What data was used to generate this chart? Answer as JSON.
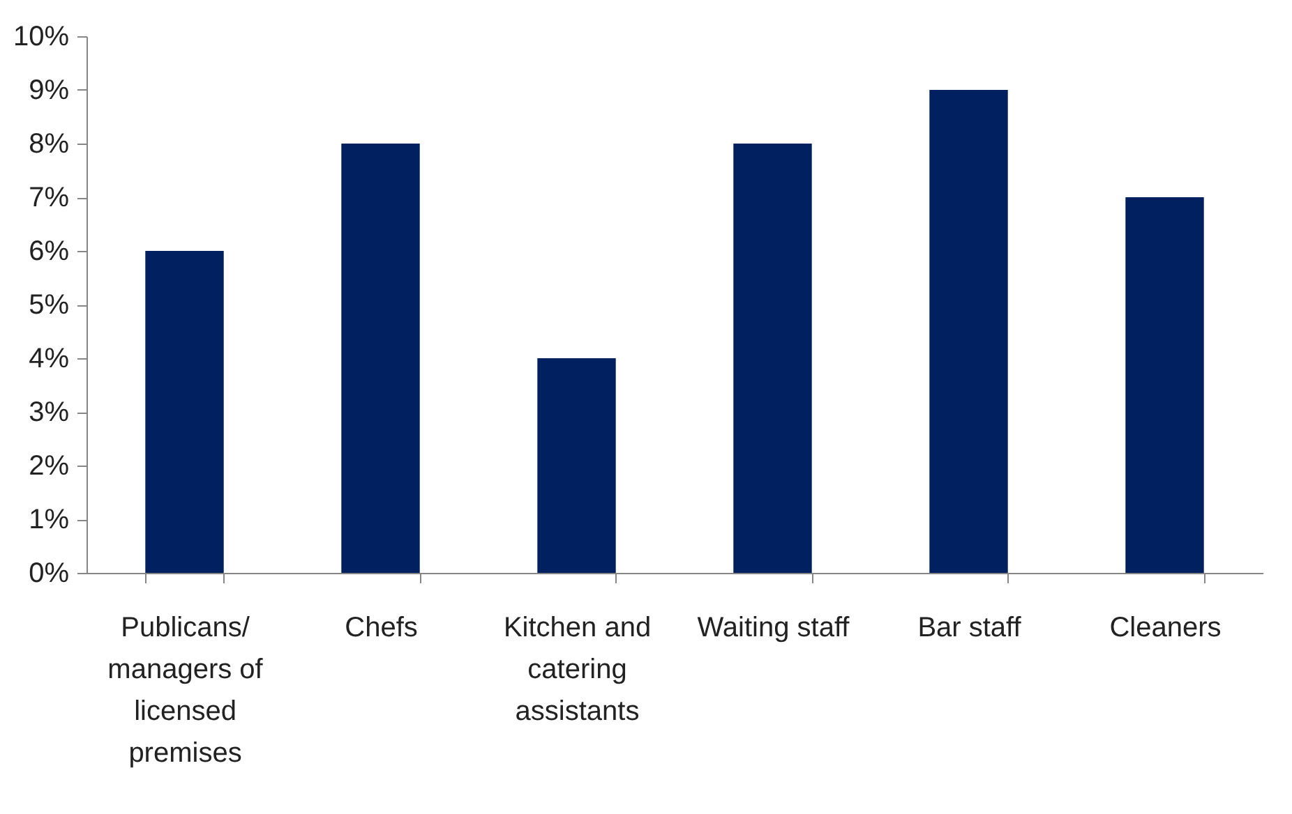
{
  "chart_data": {
    "type": "bar",
    "categories": [
      "Publicans/ managers of licensed premises",
      "Chefs",
      "Kitchen and catering assistants",
      "Waiting staff",
      "Bar staff",
      "Cleaners"
    ],
    "values": [
      6,
      8,
      4,
      8,
      9,
      7
    ],
    "color": "#002060",
    "ylim": [
      0,
      10
    ],
    "yticks": [
      {
        "value": 0,
        "label": "0%"
      },
      {
        "value": 1,
        "label": "1%"
      },
      {
        "value": 2,
        "label": "2%"
      },
      {
        "value": 3,
        "label": "3%"
      },
      {
        "value": 4,
        "label": "4%"
      },
      {
        "value": 5,
        "label": "5%"
      },
      {
        "value": 6,
        "label": "6%"
      },
      {
        "value": 7,
        "label": "7%"
      },
      {
        "value": 8,
        "label": "8%"
      },
      {
        "value": 9,
        "label": "9%"
      },
      {
        "value": 10,
        "label": "10%"
      }
    ],
    "grid": false
  }
}
